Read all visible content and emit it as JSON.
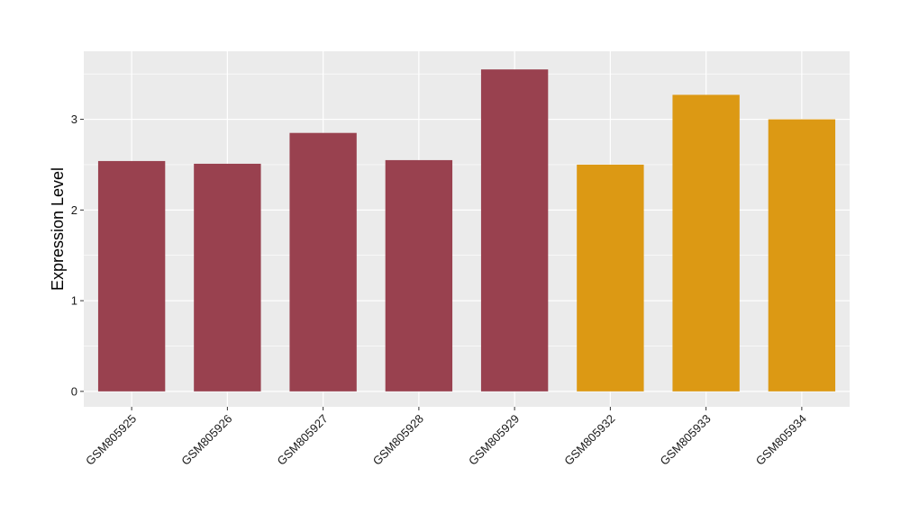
{
  "chart_data": {
    "type": "bar",
    "title": "",
    "xlabel": "",
    "ylabel": "Expression Level",
    "ylim": [
      -0.17,
      3.75
    ],
    "yticks": [
      0,
      1,
      2,
      3
    ],
    "grid": true,
    "categories": [
      "GSM805925",
      "GSM805926",
      "GSM805927",
      "GSM805928",
      "GSM805929",
      "GSM805932",
      "GSM805933",
      "GSM805934"
    ],
    "values": [
      2.54,
      2.51,
      2.85,
      2.55,
      3.55,
      2.5,
      3.27,
      3.0
    ],
    "colors": [
      "#99414f",
      "#99414f",
      "#99414f",
      "#99414f",
      "#99414f",
      "#dc9914",
      "#dc9914",
      "#dc9914"
    ],
    "panel_background": "#ebebeb",
    "grid_color": "#ffffff"
  }
}
